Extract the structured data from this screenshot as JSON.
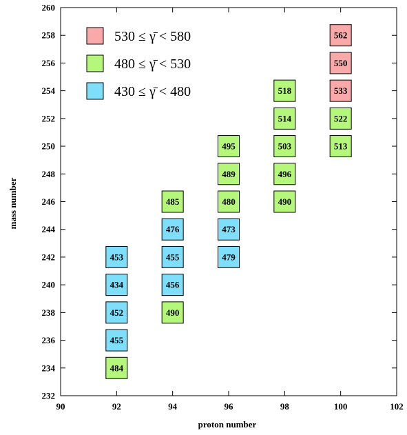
{
  "chart_data": {
    "type": "heatmap",
    "xlabel": "proton number",
    "ylabel": "mass number",
    "xlim": [
      90,
      102
    ],
    "ylim": [
      232,
      260
    ],
    "xticks": [
      "90",
      "92",
      "94",
      "96",
      "98",
      "100",
      "102"
    ],
    "yticks": [
      "232",
      "234",
      "236",
      "238",
      "240",
      "242",
      "244",
      "246",
      "248",
      "250",
      "252",
      "254",
      "256",
      "258",
      "260"
    ],
    "grid": false,
    "legend_position": "top-left",
    "legend": [
      {
        "label": "530 ≤ γ̄ < 580",
        "color": "#f9a9a9"
      },
      {
        "label": "480 ≤ γ̄ < 530",
        "color": "#b4f77a"
      },
      {
        "label": "430 ≤ γ̄ < 480",
        "color": "#7fdffa"
      }
    ],
    "points": [
      {
        "x": 92,
        "y": 234,
        "label": "484",
        "value": 484
      },
      {
        "x": 92,
        "y": 236,
        "label": "455",
        "value": 455
      },
      {
        "x": 92,
        "y": 238,
        "label": "452",
        "value": 452
      },
      {
        "x": 92,
        "y": 240,
        "label": "434",
        "value": 434
      },
      {
        "x": 92,
        "y": 242,
        "label": "453",
        "value": 453
      },
      {
        "x": 94,
        "y": 238,
        "label": "490",
        "value": 490
      },
      {
        "x": 94,
        "y": 240,
        "label": "456",
        "value": 456
      },
      {
        "x": 94,
        "y": 242,
        "label": "455",
        "value": 455
      },
      {
        "x": 94,
        "y": 244,
        "label": "476",
        "value": 476
      },
      {
        "x": 94,
        "y": 246,
        "label": "485",
        "value": 485
      },
      {
        "x": 96,
        "y": 242,
        "label": "479",
        "value": 479
      },
      {
        "x": 96,
        "y": 244,
        "label": "473",
        "value": 473
      },
      {
        "x": 96,
        "y": 246,
        "label": "480",
        "value": 480
      },
      {
        "x": 96,
        "y": 248,
        "label": "489",
        "value": 489
      },
      {
        "x": 96,
        "y": 250,
        "label": "495",
        "value": 495
      },
      {
        "x": 98,
        "y": 246,
        "label": "490",
        "value": 490
      },
      {
        "x": 98,
        "y": 248,
        "label": "496",
        "value": 496
      },
      {
        "x": 98,
        "y": 250,
        "label": "503",
        "value": 503
      },
      {
        "x": 98,
        "y": 252,
        "label": "514",
        "value": 514
      },
      {
        "x": 98,
        "y": 254,
        "label": "518",
        "value": 518
      },
      {
        "x": 100,
        "y": 250,
        "label": "513",
        "value": 513
      },
      {
        "x": 100,
        "y": 252,
        "label": "522",
        "value": 522
      },
      {
        "x": 100,
        "y": 254,
        "label": "533",
        "value": 533
      },
      {
        "x": 100,
        "y": 256,
        "label": "550",
        "value": 550
      },
      {
        "x": 100,
        "y": 258,
        "label": "562",
        "value": 562
      }
    ]
  }
}
